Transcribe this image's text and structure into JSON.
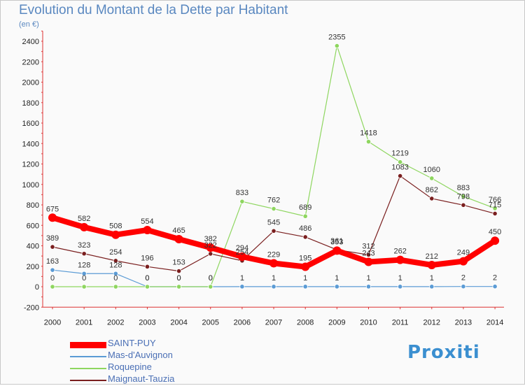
{
  "title": "Evolution du Montant de la Dette par Habitant",
  "subtitle": "(en €)",
  "logo": "Proxiti",
  "chart_data": {
    "type": "line",
    "x": [
      "2000",
      "2001",
      "2002",
      "2003",
      "2004",
      "2005",
      "2006",
      "2007",
      "2008",
      "2009",
      "2010",
      "2011",
      "2012",
      "2013",
      "2014"
    ],
    "ylim": [
      -200,
      2500
    ],
    "yticks": [
      -200,
      0,
      200,
      400,
      600,
      800,
      1000,
      1200,
      1400,
      1600,
      1800,
      2000,
      2200,
      2400
    ],
    "grid": false,
    "legend_position": "bottom-left",
    "series": [
      {
        "name": "SAINT-PUY",
        "color": "#ff0000",
        "values": [
          675,
          582,
          508,
          554,
          465,
          382,
          294,
          229,
          195,
          353,
          243,
          262,
          212,
          249,
          450
        ]
      },
      {
        "name": "Mas-d'Auvignon",
        "color": "#5b9bd5",
        "values": [
          163,
          128,
          128,
          0,
          0,
          0,
          1,
          1,
          1,
          1,
          1,
          1,
          1,
          2,
          2
        ]
      },
      {
        "name": "Roquepine",
        "color": "#8ed65f",
        "values": [
          0,
          0,
          0,
          0,
          0,
          0,
          833,
          762,
          689,
          2355,
          1418,
          1219,
          1060,
          883,
          766
        ]
      },
      {
        "name": "Maignaut-Tauzia",
        "color": "#7a1f1f",
        "values": [
          389,
          323,
          254,
          196,
          153,
          322,
          254,
          545,
          486,
          361,
          312,
          1083,
          862,
          798,
          715
        ]
      }
    ]
  }
}
